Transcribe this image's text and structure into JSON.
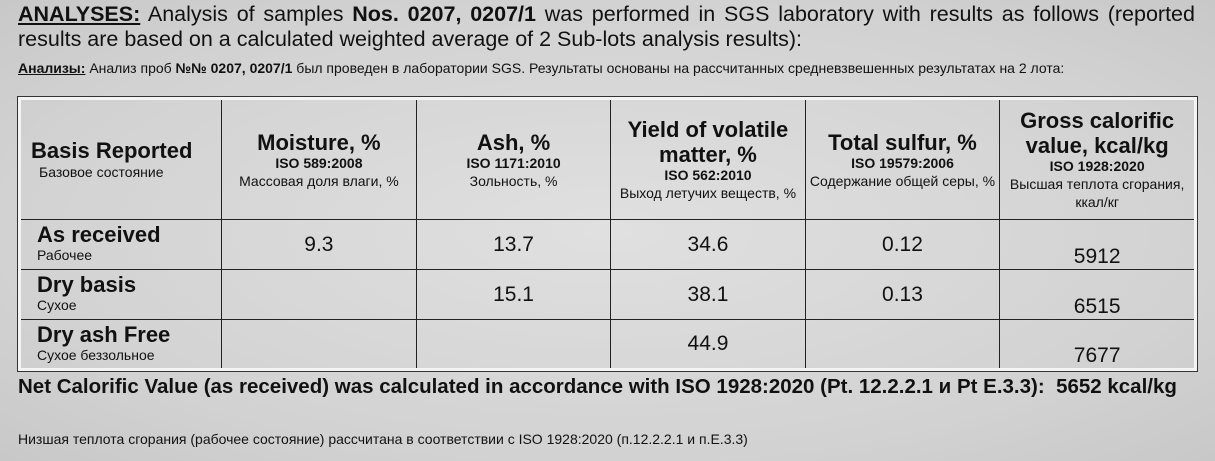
{
  "intro": {
    "label": "ANALYSES:",
    "text1": "Analysis of samples",
    "samples": "Nos. 0207, 0207/1",
    "text2": "was performed in SGS laboratory with results as follows (reported results are based on a calculated weighted average of 2 Sub-lots analysis results):"
  },
  "intro_ru": {
    "label": "Анализы:",
    "text1": "Анализ проб",
    "samples": "№№ 0207, 0207/1",
    "text2": "был проведен в лаборатории SGS. Результаты основаны на рассчитанных средневзвешенных результатах на 2 лота:"
  },
  "table": {
    "header": [
      {
        "title": "Basis Reported",
        "ru": "Базовое состояние"
      },
      {
        "title": "Moisture, %",
        "standard": "ISO 589:2008",
        "ru": "Массовая доля влаги, %"
      },
      {
        "title": "Ash, %",
        "standard": "ISO 1171:2010",
        "ru": "Зольность, %"
      },
      {
        "title": "Yield of volatile matter, %",
        "standard": "ISO 562:2010",
        "ru": "Выход летучих веществ, %"
      },
      {
        "title": "Total sulfur, %",
        "standard": "ISO 19579:2006",
        "ru": "Содержание общей серы, %"
      },
      {
        "title": "Gross calorific value, kcal/kg",
        "standard": "ISO 1928:2020",
        "ru": "Высшая теплота сгорания, ккал/кг"
      }
    ],
    "rows": [
      {
        "label": "As received",
        "ru": "Рабочее",
        "values": [
          9.3,
          13.7,
          34.6,
          0.12,
          5912
        ]
      },
      {
        "label": "Dry basis",
        "ru": "Сухое",
        "values": [
          null,
          15.1,
          38.1,
          0.13,
          6515
        ]
      },
      {
        "label": "Dry ash Free",
        "ru": "Сухое беззольное",
        "values": [
          null,
          null,
          44.9,
          null,
          7677
        ]
      }
    ]
  },
  "footer": {
    "text": "Net Calorific Value (as received) was calculated in accordance with ISO 1928:2020 (Pt. 12.2.2.1 и Pt E.3.3):",
    "value": "5652 kcal/kg",
    "ru": "Низшая теплота сгорания (рабочее состояние) рассчитана в соответствии с ISO 1928:2020 (п.12.2.2.1 и п.Е.3.3)"
  }
}
